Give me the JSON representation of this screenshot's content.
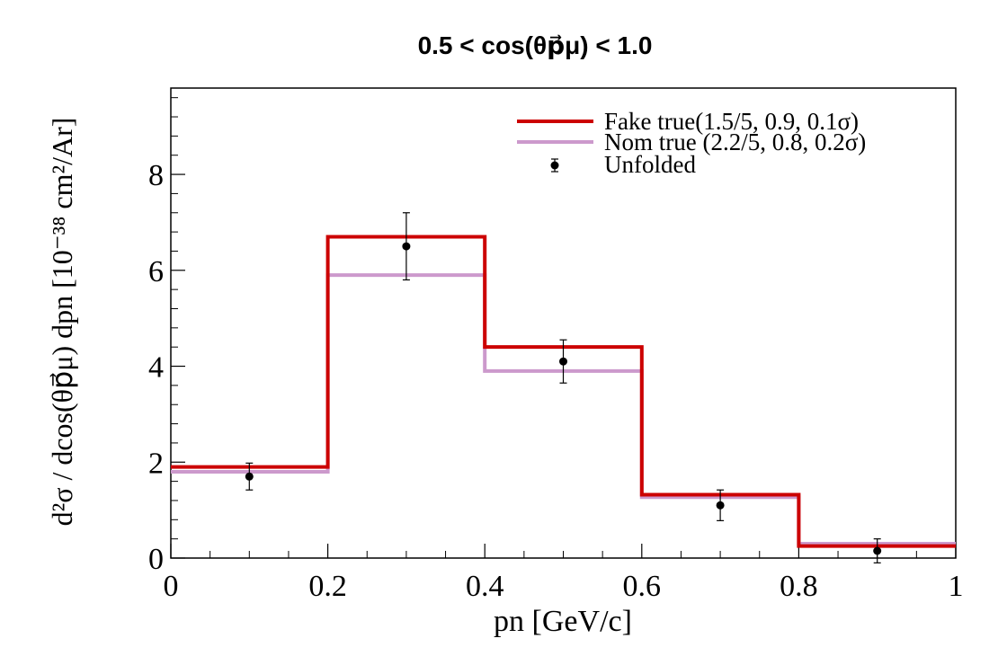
{
  "chart_data": {
    "type": "line",
    "title": "0.5 < cos(θp⃗μ) < 1.0",
    "xlabel": "pn [GeV/c]",
    "ylabel": "d²σ / dcos(θp⃗μ) dpn [10⁻³⁸ cm²/Ar]",
    "xlim": [
      0,
      1
    ],
    "ylim": [
      0,
      9.8
    ],
    "x_ticks": [
      "0",
      "0.2",
      "0.4",
      "0.6",
      "0.8",
      "1"
    ],
    "y_ticks": [
      "0",
      "2",
      "4",
      "6",
      "8"
    ],
    "grid": false,
    "legend_position": "top-right",
    "bin_edges": [
      0,
      0.2,
      0.4,
      0.6,
      0.8,
      1.0
    ],
    "series": [
      {
        "name": "Fake true(1.5/5, 0.9, 0.1σ)",
        "style": "histogram",
        "color": "#cc0000",
        "values": [
          1.9,
          6.7,
          4.4,
          1.32,
          0.25
        ]
      },
      {
        "name": "Nom true (2.2/5, 0.8, 0.2σ)",
        "style": "histogram",
        "color": "#cc99cc",
        "values": [
          1.8,
          5.9,
          3.9,
          1.27,
          0.3
        ]
      },
      {
        "name": "Unfolded",
        "style": "points-with-errors",
        "color": "#000000",
        "x": [
          0.1,
          0.3,
          0.5,
          0.7,
          0.9
        ],
        "values": [
          1.7,
          6.5,
          4.1,
          1.1,
          0.15
        ],
        "errors": [
          0.28,
          0.7,
          0.45,
          0.32,
          0.25
        ]
      }
    ]
  }
}
